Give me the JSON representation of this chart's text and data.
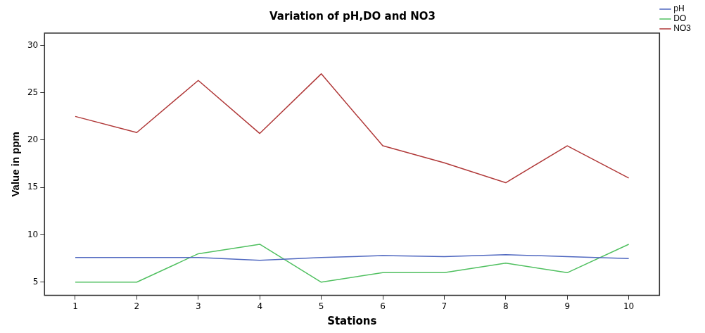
{
  "chart_data": {
    "type": "line",
    "title": "Variation of pH,DO and NO3",
    "xlabel": "Stations",
    "ylabel": "Value in ppm",
    "categories": [
      "1",
      "2",
      "3",
      "4",
      "5",
      "6",
      "7",
      "8",
      "9",
      "10"
    ],
    "series": [
      {
        "name": "pH",
        "color": "#5068c0",
        "values": [
          7.6,
          7.6,
          7.6,
          7.3,
          7.6,
          7.8,
          7.7,
          7.9,
          7.7,
          7.5
        ]
      },
      {
        "name": "DO",
        "color": "#50c060",
        "values": [
          5,
          5,
          8,
          9,
          5,
          6,
          6,
          7,
          6,
          9
        ]
      },
      {
        "name": "NO3",
        "color": "#b03838",
        "values": [
          22.5,
          20.8,
          26.3,
          20.7,
          27.0,
          19.4,
          17.6,
          15.5,
          19.4,
          16.0
        ]
      }
    ],
    "ylim": [
      3.6,
      31.3
    ],
    "yticks": [
      5,
      10,
      15,
      20,
      25,
      30
    ],
    "grid": false,
    "legend": "top right",
    "marker": "none",
    "line_style": "solid"
  }
}
